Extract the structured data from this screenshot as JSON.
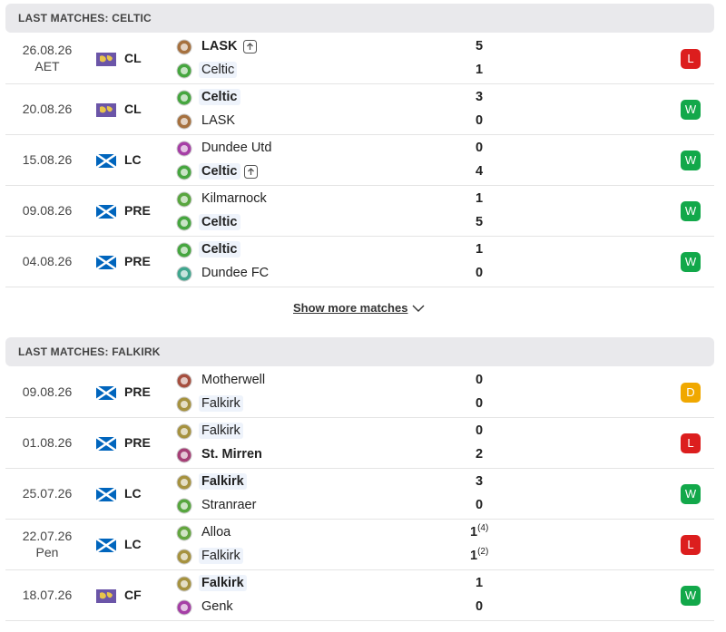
{
  "sections": [
    {
      "title": "LAST MATCHES: CELTIC",
      "matches": [
        {
          "date": "26.08.26",
          "note": "AET",
          "competition": "CL",
          "flag": {
            "color": "#6b55a8",
            "cross": false
          },
          "home": {
            "team": "LASK",
            "score": 5,
            "advanced": true
          },
          "away": {
            "team": "Celtic",
            "score": 1
          },
          "result": "L"
        },
        {
          "date": "20.08.26",
          "competition": "CL",
          "flag": {
            "color": "#6b55a8",
            "cross": false
          },
          "home": {
            "team": "Celtic",
            "score": 3
          },
          "away": {
            "team": "LASK",
            "score": 0
          },
          "result": "W"
        },
        {
          "date": "15.08.26",
          "competition": "LC",
          "flag": {
            "color": "#0065bd",
            "cross": true
          },
          "home": {
            "team": "Dundee Utd",
            "score": 0
          },
          "away": {
            "team": "Celtic",
            "score": 4,
            "advanced": true
          },
          "result": "W"
        },
        {
          "date": "09.08.26",
          "competition": "PRE",
          "flag": {
            "color": "#0065bd",
            "cross": true
          },
          "home": {
            "team": "Kilmarnock",
            "score": 1
          },
          "away": {
            "team": "Celtic",
            "score": 5
          },
          "result": "W"
        },
        {
          "date": "04.08.26",
          "competition": "PRE",
          "flag": {
            "color": "#0065bd",
            "cross": true
          },
          "home": {
            "team": "Celtic",
            "score": 1
          },
          "away": {
            "team": "Dundee FC",
            "score": 0
          },
          "result": "W"
        }
      ],
      "show_more": "Show more matches"
    },
    {
      "title": "LAST MATCHES: FALKIRK",
      "matches": [
        {
          "date": "09.08.26",
          "competition": "PRE",
          "flag": {
            "color": "#0065bd",
            "cross": true
          },
          "home": {
            "team": "Motherwell",
            "score": 0
          },
          "away": {
            "team": "Falkirk",
            "score": 0
          },
          "result": "D"
        },
        {
          "date": "01.08.26",
          "competition": "PRE",
          "flag": {
            "color": "#0065bd",
            "cross": true
          },
          "home": {
            "team": "Falkirk",
            "score": 0
          },
          "away": {
            "team": "St. Mirren",
            "score": 2
          },
          "result": "L"
        },
        {
          "date": "25.07.26",
          "competition": "LC",
          "flag": {
            "color": "#0065bd",
            "cross": true
          },
          "home": {
            "team": "Falkirk",
            "score": 3
          },
          "away": {
            "team": "Stranraer",
            "score": 0
          },
          "result": "W"
        },
        {
          "date": "22.07.26",
          "note": "Pen",
          "competition": "LC",
          "flag": {
            "color": "#0065bd",
            "cross": true
          },
          "home": {
            "team": "Alloa",
            "score": 1,
            "pen": "(4)"
          },
          "away": {
            "team": "Falkirk",
            "score": 1,
            "pen": "(2)"
          },
          "result": "L"
        },
        {
          "date": "18.07.26",
          "competition": "CF",
          "flag": {
            "color": "#6b55a8",
            "cross": false
          },
          "home": {
            "team": "Falkirk",
            "score": 1
          },
          "away": {
            "team": "Genk",
            "score": 0
          },
          "result": "W"
        }
      ]
    }
  ]
}
